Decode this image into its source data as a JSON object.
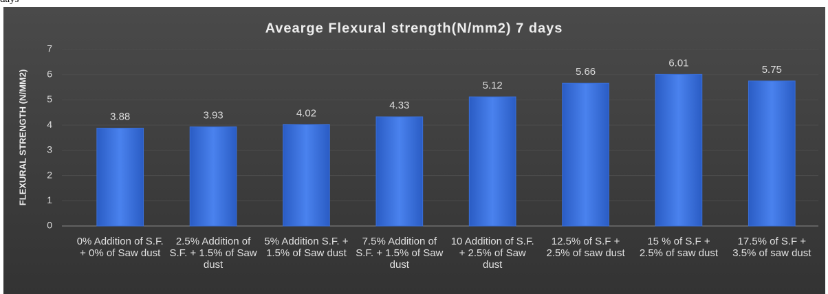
{
  "page": {
    "caption_fragment": "days"
  },
  "chart_data": {
    "type": "bar",
    "title": "Avearge Flexural strength(N/mm2) 7 days",
    "y_label": "FLEXURAL STRENGTH (N/MM2)",
    "categories": [
      "0% Addition of S.F. + 0% of Saw dust",
      "2.5% Addition of S.F. + 1.5% of Saw dust",
      "5% Addition S.F. + 1.5% of Saw dust",
      "7.5% Addition of S.F. + 1.5% of Saw dust",
      "10 Addition of S.F. + 2.5% of Saw dust",
      "12.5% of S.F + 2.5% of saw dust",
      "15 % of S.F + 2.5% of saw dust",
      "17.5% of S.F + 3.5% of saw dust"
    ],
    "values": [
      3.88,
      3.93,
      4.02,
      4.33,
      5.12,
      5.66,
      6.01,
      5.75
    ],
    "color": "#3a6fd8",
    "ylim": [
      0,
      7
    ],
    "yticks": [
      0,
      1,
      2,
      3,
      4,
      5,
      6,
      7
    ],
    "grid": true
  }
}
